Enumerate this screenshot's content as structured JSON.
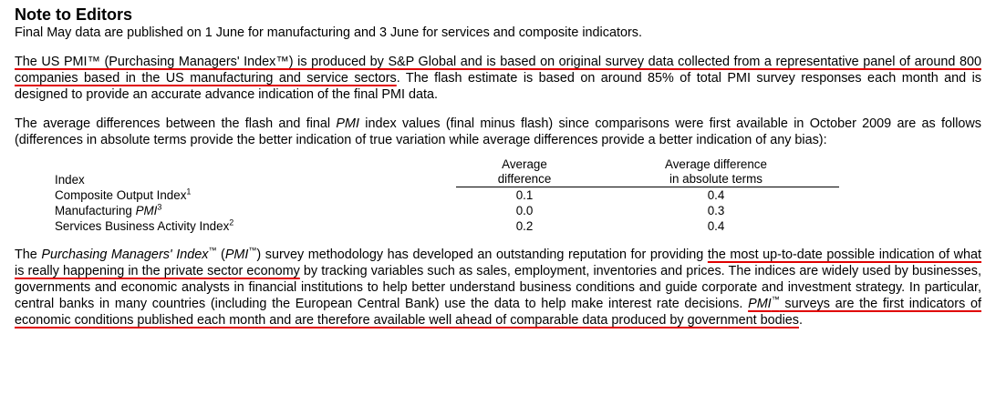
{
  "heading": "Note to Editors",
  "intro": "Final May data are published on 1 June for manufacturing and 3 June for services and composite indicators.",
  "us_pmi": {
    "underlined": "The US PMI™ (Purchasing Managers' Index™) is produced by S&P Global and is based on original survey data collected from a representative panel of around 800 companies based in the US manufacturing and service sectors",
    "rest": ". The flash estimate is based on around 85% of total PMI survey responses each month and is designed to provide an accurate advance indication of the final PMI data."
  },
  "avg_diff": {
    "part1": "The average differences between the flash and final ",
    "pmi": "PMI",
    "part2": " index values (final minus flash) since comparisons were first available in October 2009 are as follows (differences in absolute terms provide the better indication of true variation while average differences provide a better indication of any bias):"
  },
  "table": {
    "col_index": "Index",
    "col_avg_line1": "Average",
    "col_avg_line2": "difference",
    "col_abs_line1": "Average difference",
    "col_abs_line2": "in absolute terms",
    "rows": [
      {
        "label": "Composite Output Index",
        "label_italic": "",
        "sup": "1",
        "avg": "0.1",
        "abs": "0.4"
      },
      {
        "label": "Manufacturing ",
        "label_italic": "PMI",
        "sup": "3",
        "avg": "0.0",
        "abs": "0.3"
      },
      {
        "label": "Services Business Activity Index",
        "label_italic": "",
        "sup": "2",
        "avg": "0.2",
        "abs": "0.4"
      }
    ]
  },
  "methodology": {
    "t1": "The ",
    "t2": "Purchasing Managers' Index",
    "tm1": "™",
    "t3": " (",
    "t4": "PMI",
    "tm2": "™",
    "t5": ") survey methodology has developed an outstanding reputation for providing ",
    "u1": "the most up-to-date possible indication of what is really happening in the private sector economy",
    "t6": " by tracking variables such as sales, employment, inventories and prices. The indices are widely used by businesses, governments and economic analysts in financial institutions to help better understand business conditions and guide corporate and investment strategy. In particular, central banks in many countries (including the European Central Bank) use the data to help make interest rate decisions. ",
    "u2a": "PMI",
    "u2tm": "™",
    "u2b": " surveys are the first indicators of economic conditions published each month and are therefore available well ahead of comparable data produced by government bodies",
    "t7": "."
  },
  "colors": {
    "underline": "#e00000"
  }
}
